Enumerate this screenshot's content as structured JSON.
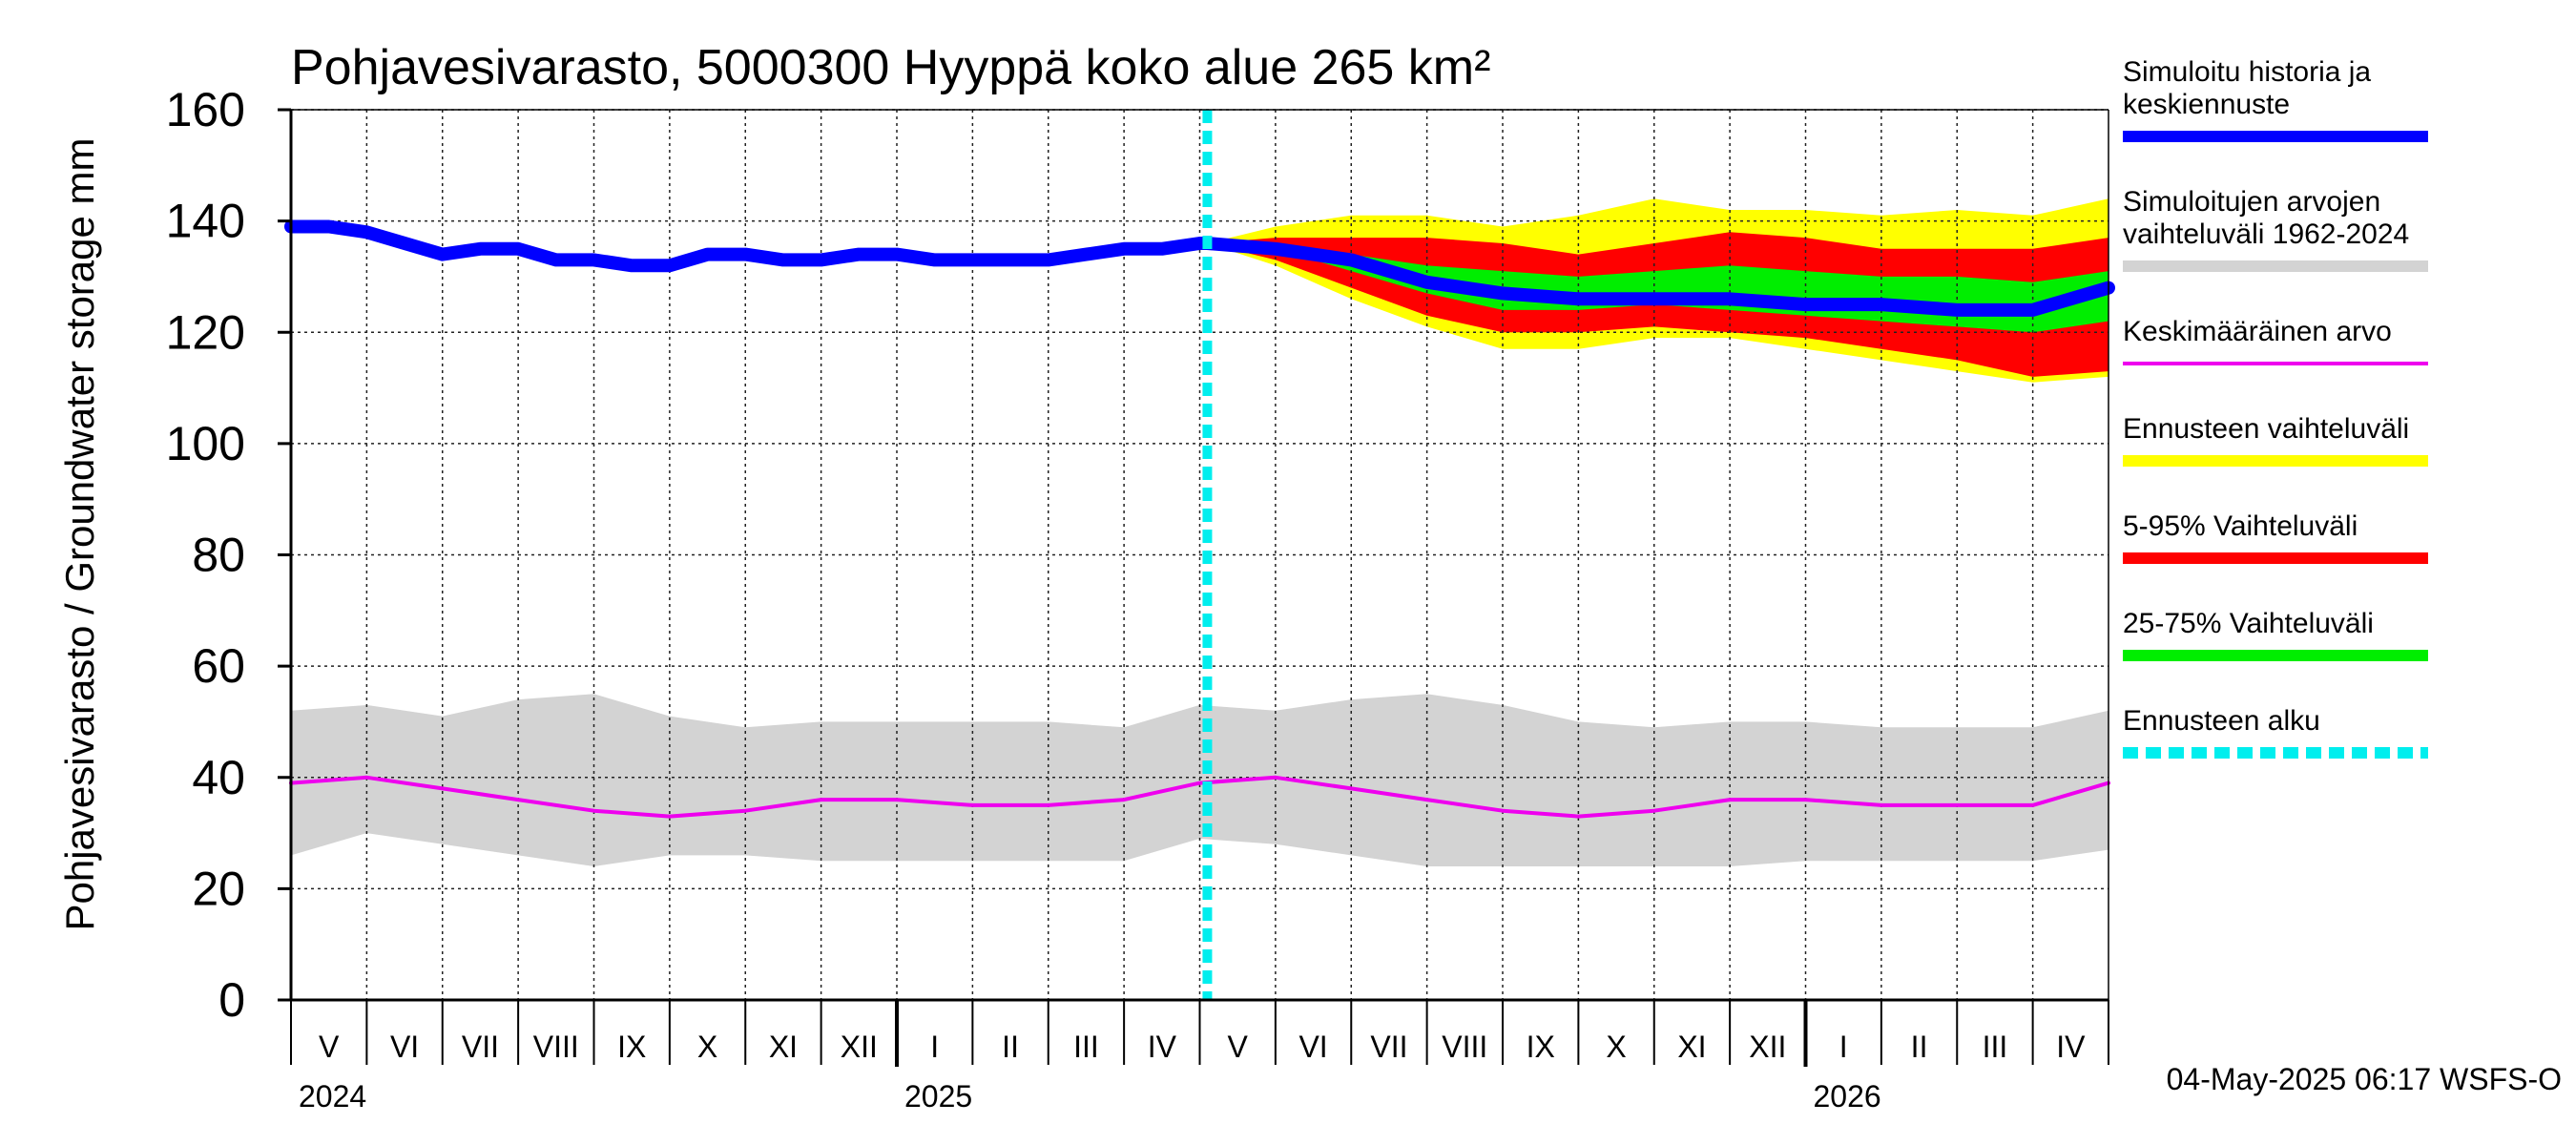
{
  "chart_data": {
    "type": "line",
    "title": "Pohjavesivarasto, 5000300 Hyyppä koko alue 265 km²",
    "ylabel": "Pohjavesivarasto / Groundwater storage   mm",
    "xlabel": "",
    "ylim": [
      0,
      160
    ],
    "yticks": [
      0,
      20,
      40,
      60,
      80,
      100,
      120,
      140,
      160
    ],
    "grid": true,
    "x_unit": "month index (0 = start of May 2024)",
    "xlim": [
      0,
      24
    ],
    "forecast_start": 12.1,
    "month_labels": [
      "V",
      "VI",
      "VII",
      "VIII",
      "IX",
      "X",
      "XI",
      "XII",
      "I",
      "II",
      "III",
      "IV",
      "V",
      "VI",
      "VII",
      "VIII",
      "IX",
      "X",
      "XI",
      "XII",
      "I",
      "II",
      "III",
      "IV"
    ],
    "year_labels": [
      {
        "label": "2024",
        "at": 0
      },
      {
        "label": "2025",
        "at": 8
      },
      {
        "label": "2026",
        "at": 20
      }
    ],
    "series": [
      {
        "name": "Simuloitujen arvojen vaihteluväli 1962-2024",
        "kind": "band",
        "color": "#d3d3d3",
        "x": [
          0,
          1,
          2,
          3,
          4,
          5,
          6,
          7,
          8,
          9,
          10,
          11,
          12,
          13,
          14,
          15,
          16,
          17,
          18,
          19,
          20,
          21,
          22,
          23,
          24
        ],
        "lower": [
          26,
          30,
          28,
          26,
          24,
          26,
          26,
          25,
          25,
          25,
          25,
          25,
          29,
          28,
          26,
          24,
          24,
          24,
          24,
          24,
          25,
          25,
          25,
          25,
          27
        ],
        "upper": [
          52,
          53,
          51,
          54,
          55,
          51,
          49,
          50,
          50,
          50,
          50,
          49,
          53,
          52,
          54,
          55,
          53,
          50,
          49,
          50,
          50,
          49,
          49,
          49,
          52
        ]
      },
      {
        "name": "Ennusteen vaihteluväli",
        "kind": "band",
        "color": "#ffff00",
        "x": [
          12.1,
          13,
          14,
          15,
          16,
          17,
          18,
          19,
          20,
          21,
          22,
          23,
          24
        ],
        "lower": [
          136,
          132,
          126,
          121,
          117,
          117,
          119,
          119,
          117,
          115,
          113,
          111,
          112
        ],
        "upper": [
          136,
          139,
          141,
          141,
          139,
          141,
          144,
          142,
          142,
          141,
          142,
          141,
          144
        ]
      },
      {
        "name": "5-95% Vaihteluväli",
        "kind": "band",
        "color": "#ff0000",
        "x": [
          12.1,
          13,
          14,
          15,
          16,
          17,
          18,
          19,
          20,
          21,
          22,
          23,
          24
        ],
        "lower": [
          136,
          133,
          128,
          123,
          120,
          120,
          121,
          120,
          119,
          117,
          115,
          112,
          113
        ],
        "upper": [
          136,
          137,
          137,
          137,
          136,
          134,
          136,
          138,
          137,
          135,
          135,
          135,
          137
        ]
      },
      {
        "name": "25-75% Vaihteluväli",
        "kind": "band",
        "color": "#00ee00",
        "x": [
          12.1,
          13,
          14,
          15,
          16,
          17,
          18,
          19,
          20,
          21,
          22,
          23,
          24
        ],
        "lower": [
          136,
          135,
          131,
          127,
          124,
          124,
          125,
          124,
          123,
          122,
          121,
          120,
          122
        ],
        "upper": [
          136,
          136,
          134,
          132,
          131,
          130,
          131,
          132,
          131,
          130,
          130,
          129,
          131
        ]
      },
      {
        "name": "Keskimääräinen arvo",
        "kind": "line",
        "color": "#ee00ee",
        "x": [
          0,
          1,
          2,
          3,
          4,
          5,
          6,
          7,
          8,
          9,
          10,
          11,
          12,
          13,
          14,
          15,
          16,
          17,
          18,
          19,
          20,
          21,
          22,
          23,
          24
        ],
        "values": [
          39,
          40,
          38,
          36,
          34,
          33,
          34,
          36,
          36,
          35,
          35,
          36,
          39,
          40,
          38,
          36,
          34,
          33,
          34,
          36,
          36,
          35,
          35,
          35,
          39
        ]
      },
      {
        "name": "Simuloitu historia ja keskiennuste",
        "kind": "line",
        "color": "#0000ff",
        "x": [
          0,
          0.5,
          1,
          1.5,
          2,
          2.5,
          3,
          3.5,
          4,
          4.5,
          5,
          5.5,
          6,
          6.5,
          7,
          7.5,
          8,
          8.5,
          9,
          9.5,
          10,
          10.5,
          11,
          11.5,
          12,
          12.1,
          13,
          14,
          15,
          16,
          17,
          18,
          19,
          20,
          21,
          22,
          23,
          24
        ],
        "values": [
          139,
          139,
          138,
          136,
          134,
          135,
          135,
          133,
          133,
          132,
          132,
          134,
          134,
          133,
          133,
          134,
          134,
          133,
          133,
          133,
          133,
          134,
          135,
          135,
          136,
          136,
          135,
          133,
          129,
          127,
          126,
          126,
          126,
          125,
          125,
          124,
          124,
          128
        ]
      },
      {
        "name": "Ennusteen alku",
        "kind": "vline",
        "color": "#00eeee",
        "at": 12.1
      }
    ]
  },
  "legend": {
    "items": [
      {
        "label_lines": [
          "Simuloitu historia ja",
          "keskiennuste"
        ],
        "color": "#0000ff",
        "style": "solid"
      },
      {
        "label_lines": [
          "Simuloitujen arvojen",
          "vaihteluväli 1962-2024"
        ],
        "color": "#d3d3d3",
        "style": "solid"
      },
      {
        "label_lines": [
          "Keskimääräinen arvo"
        ],
        "color": "#ee00ee",
        "style": "thin"
      },
      {
        "label_lines": [
          "Ennusteen vaihteluväli"
        ],
        "color": "#ffff00",
        "style": "solid"
      },
      {
        "label_lines": [
          "5-95% Vaihteluväli"
        ],
        "color": "#ff0000",
        "style": "solid"
      },
      {
        "label_lines": [
          "25-75% Vaihteluväli"
        ],
        "color": "#00ee00",
        "style": "solid"
      },
      {
        "label_lines": [
          "Ennusteen alku"
        ],
        "color": "#00eeee",
        "style": "dashed"
      }
    ]
  },
  "footer": {
    "timestamp": "04-May-2025 06:17 WSFS-O"
  }
}
